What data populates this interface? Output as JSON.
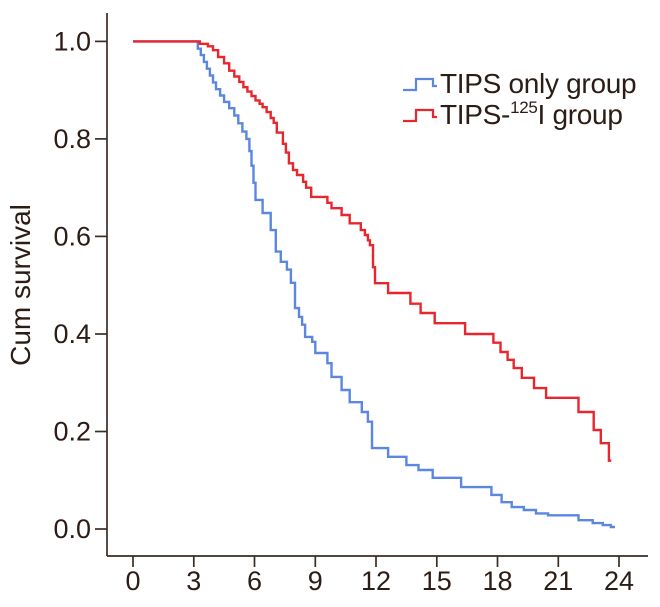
{
  "chart_data": {
    "type": "line",
    "subtype": "kaplan-meier-step",
    "title": "",
    "xlabel": "",
    "ylabel": "Cum survival",
    "x_ticks": [
      0,
      3,
      6,
      9,
      12,
      15,
      18,
      21,
      24
    ],
    "y_ticks": [
      "0.0",
      "0.2",
      "0.4",
      "0.6",
      "0.8",
      "1.0"
    ],
    "xlim": [
      0,
      25.4
    ],
    "ylim": [
      0.0,
      1.0
    ],
    "grid": false,
    "legend_position": "upper-right-inside",
    "axis_color": "#3a2d24",
    "text_color": "#2b1c15",
    "series": [
      {
        "name": "TIPS only group",
        "color": "#5b87e0",
        "label_parts": [
          {
            "t": "TIPS only group"
          }
        ],
        "start": [
          0,
          1.0
        ],
        "end_month": 23.8,
        "steps": [
          [
            3.2,
            0.985
          ],
          [
            3.35,
            0.972
          ],
          [
            3.5,
            0.958
          ],
          [
            3.65,
            0.944
          ],
          [
            3.8,
            0.93
          ],
          [
            3.95,
            0.916
          ],
          [
            4.1,
            0.902
          ],
          [
            4.3,
            0.889
          ],
          [
            4.5,
            0.876
          ],
          [
            4.75,
            0.863
          ],
          [
            5.0,
            0.848
          ],
          [
            5.2,
            0.832
          ],
          [
            5.4,
            0.815
          ],
          [
            5.6,
            0.8
          ],
          [
            5.75,
            0.775
          ],
          [
            5.85,
            0.745
          ],
          [
            5.95,
            0.71
          ],
          [
            6.05,
            0.675
          ],
          [
            6.4,
            0.648
          ],
          [
            6.8,
            0.613
          ],
          [
            7.05,
            0.569
          ],
          [
            7.3,
            0.548
          ],
          [
            7.6,
            0.532
          ],
          [
            7.8,
            0.505
          ],
          [
            8.0,
            0.453
          ],
          [
            8.2,
            0.435
          ],
          [
            8.35,
            0.419
          ],
          [
            8.5,
            0.394
          ],
          [
            8.85,
            0.384
          ],
          [
            9.0,
            0.361
          ],
          [
            9.6,
            0.34
          ],
          [
            9.8,
            0.312
          ],
          [
            10.3,
            0.285
          ],
          [
            10.7,
            0.26
          ],
          [
            11.3,
            0.24
          ],
          [
            11.6,
            0.22
          ],
          [
            11.8,
            0.166
          ],
          [
            12.6,
            0.148
          ],
          [
            13.5,
            0.131
          ],
          [
            14.1,
            0.121
          ],
          [
            14.8,
            0.105
          ],
          [
            16.2,
            0.086
          ],
          [
            17.7,
            0.07
          ],
          [
            18.2,
            0.055
          ],
          [
            18.7,
            0.045
          ],
          [
            19.3,
            0.039
          ],
          [
            19.9,
            0.032
          ],
          [
            20.5,
            0.028
          ],
          [
            22.0,
            0.018
          ],
          [
            22.7,
            0.012
          ],
          [
            23.2,
            0.008
          ],
          [
            23.6,
            0.004
          ]
        ]
      },
      {
        "name": "TIPS-125I group",
        "color": "#e8262e",
        "label_parts": [
          {
            "t": "TIPS-"
          },
          {
            "t": "125",
            "sup": true
          },
          {
            "t": "I group"
          }
        ],
        "start": [
          0,
          1.0
        ],
        "end_month": 23.62,
        "steps": [
          [
            3.3,
            0.995
          ],
          [
            3.7,
            0.99
          ],
          [
            3.95,
            0.982
          ],
          [
            4.2,
            0.968
          ],
          [
            4.5,
            0.955
          ],
          [
            4.75,
            0.94
          ],
          [
            5.0,
            0.928
          ],
          [
            5.25,
            0.917
          ],
          [
            5.45,
            0.906
          ],
          [
            5.65,
            0.897
          ],
          [
            5.85,
            0.888
          ],
          [
            6.05,
            0.879
          ],
          [
            6.25,
            0.872
          ],
          [
            6.4,
            0.865
          ],
          [
            6.6,
            0.855
          ],
          [
            6.8,
            0.843
          ],
          [
            6.95,
            0.833
          ],
          [
            7.1,
            0.813
          ],
          [
            7.4,
            0.79
          ],
          [
            7.55,
            0.772
          ],
          [
            7.7,
            0.75
          ],
          [
            7.9,
            0.736
          ],
          [
            8.1,
            0.726
          ],
          [
            8.4,
            0.712
          ],
          [
            8.55,
            0.7
          ],
          [
            8.8,
            0.681
          ],
          [
            9.6,
            0.669
          ],
          [
            9.8,
            0.658
          ],
          [
            10.3,
            0.644
          ],
          [
            10.7,
            0.627
          ],
          [
            11.25,
            0.613
          ],
          [
            11.45,
            0.603
          ],
          [
            11.6,
            0.592
          ],
          [
            11.7,
            0.582
          ],
          [
            11.85,
            0.537
          ],
          [
            11.95,
            0.504
          ],
          [
            12.6,
            0.484
          ],
          [
            13.7,
            0.462
          ],
          [
            14.2,
            0.443
          ],
          [
            14.9,
            0.422
          ],
          [
            16.4,
            0.4
          ],
          [
            17.8,
            0.382
          ],
          [
            18.15,
            0.363
          ],
          [
            18.5,
            0.347
          ],
          [
            18.8,
            0.33
          ],
          [
            19.2,
            0.31
          ],
          [
            19.8,
            0.289
          ],
          [
            20.4,
            0.269
          ],
          [
            22.0,
            0.24
          ],
          [
            22.75,
            0.203
          ],
          [
            23.1,
            0.176
          ],
          [
            23.5,
            0.14
          ]
        ]
      }
    ]
  }
}
